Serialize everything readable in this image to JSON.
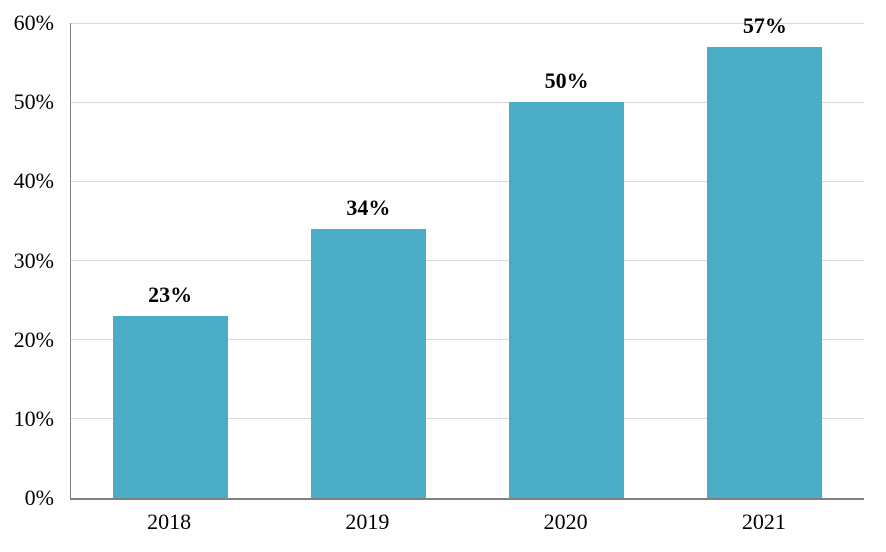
{
  "chart_data": {
    "type": "bar",
    "title": "",
    "xlabel": "",
    "ylabel": "",
    "categories": [
      "2018",
      "2019",
      "2020",
      "2021"
    ],
    "values": [
      23,
      34,
      50,
      57
    ],
    "value_labels": [
      "23%",
      "34%",
      "50%",
      "57%"
    ],
    "ylim": [
      0,
      60
    ],
    "ytick_interval": 10,
    "ytick_labels": [
      "0%",
      "10%",
      "20%",
      "30%",
      "40%",
      "50%",
      "60%"
    ],
    "grid": true,
    "legend_position": "none",
    "bar_color": "#4BACC6",
    "gridline_color": "#D9D9D9",
    "axis_line_color": "#808080",
    "text_color": "#000000",
    "background_color": "#FFFFFF"
  }
}
